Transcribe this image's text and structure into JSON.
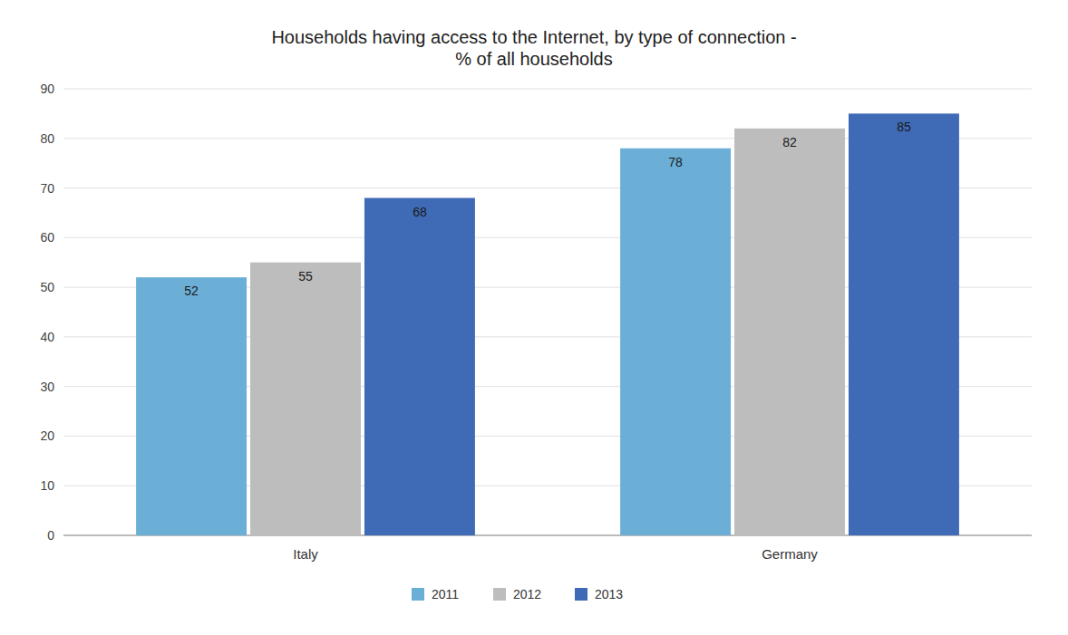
{
  "chart_data": {
    "type": "bar",
    "title": "Households having access to the Internet, by type of connection -\n% of all households",
    "categories": [
      "Italy",
      "Germany"
    ],
    "series": [
      {
        "name": "2011",
        "values": [
          52,
          78
        ],
        "color": "#6BAED6"
      },
      {
        "name": "2012",
        "values": [
          55,
          82
        ],
        "color": "#BDBDBD"
      },
      {
        "name": "2013",
        "values": [
          68,
          85
        ],
        "color": "#3F6AB5"
      }
    ],
    "ylim": [
      0,
      90
    ],
    "yticks": [
      0,
      10,
      20,
      30,
      40,
      50,
      60,
      70,
      80,
      90
    ],
    "grid": true,
    "legend": "bottom",
    "data_labels": true
  }
}
